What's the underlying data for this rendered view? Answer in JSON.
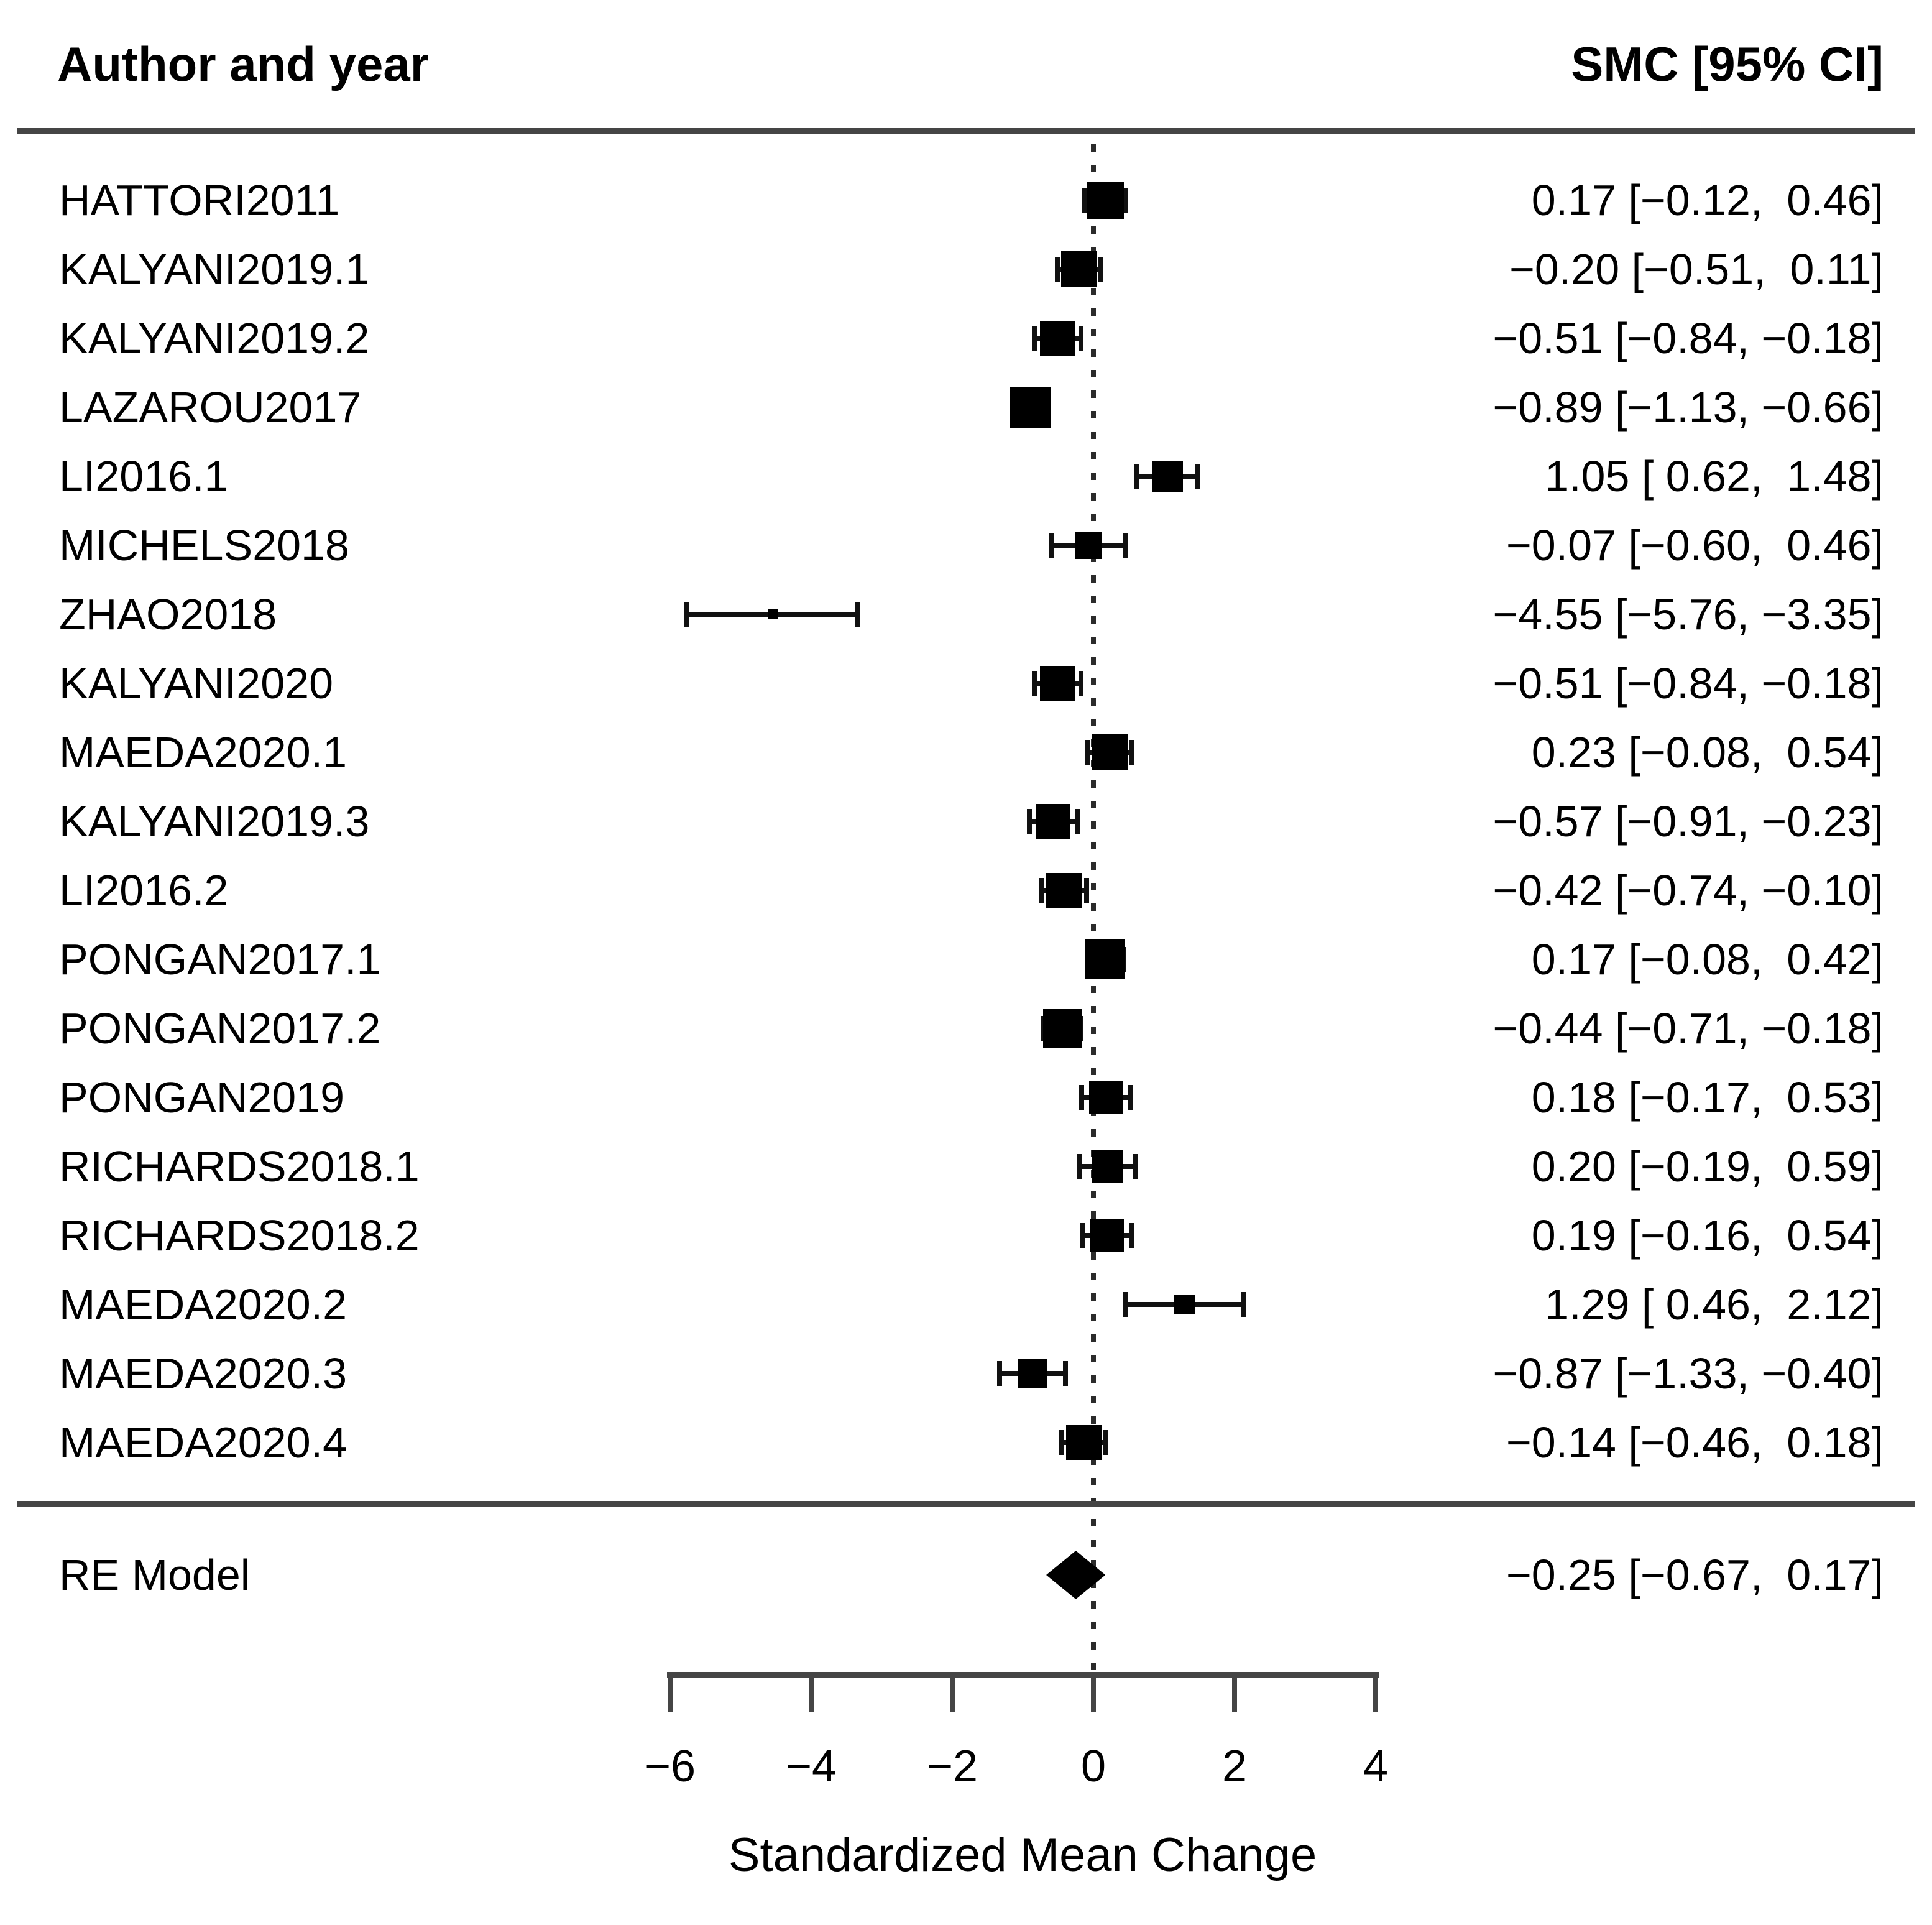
{
  "header": {
    "left": "Author and year",
    "right": "SMC [95% CI]"
  },
  "colors": {
    "text": "#000000",
    "rule_gray": "#454545",
    "marker_black": "#000000"
  },
  "chart_data": {
    "type": "forest",
    "title": "",
    "xlabel": "Standardized Mean Change",
    "xlim": [
      -6,
      4
    ],
    "x_ticks": [
      -6,
      -4,
      -2,
      0,
      2,
      4
    ],
    "zero_reference_line": 0,
    "effect_measure": "SMC",
    "ci_level": "95%",
    "studies": [
      {
        "label": "HATTORI2011",
        "est": 0.17,
        "lo": -0.12,
        "hi": 0.46
      },
      {
        "label": "KALYANI2019.1",
        "est": -0.2,
        "lo": -0.51,
        "hi": 0.11
      },
      {
        "label": "KALYANI2019.2",
        "est": -0.51,
        "lo": -0.84,
        "hi": -0.18
      },
      {
        "label": "LAZAROU2017",
        "est": -0.89,
        "lo": -1.13,
        "hi": -0.66
      },
      {
        "label": "LI2016.1",
        "est": 1.05,
        "lo": 0.62,
        "hi": 1.48
      },
      {
        "label": "MICHELS2018",
        "est": -0.07,
        "lo": -0.6,
        "hi": 0.46
      },
      {
        "label": "ZHAO2018",
        "est": -4.55,
        "lo": -5.76,
        "hi": -3.35
      },
      {
        "label": "KALYANI2020",
        "est": -0.51,
        "lo": -0.84,
        "hi": -0.18
      },
      {
        "label": "MAEDA2020.1",
        "est": 0.23,
        "lo": -0.08,
        "hi": 0.54
      },
      {
        "label": "KALYANI2019.3",
        "est": -0.57,
        "lo": -0.91,
        "hi": -0.23
      },
      {
        "label": "LI2016.2",
        "est": -0.42,
        "lo": -0.74,
        "hi": -0.1
      },
      {
        "label": "PONGAN2017.1",
        "est": 0.17,
        "lo": -0.08,
        "hi": 0.42
      },
      {
        "label": "PONGAN2017.2",
        "est": -0.44,
        "lo": -0.71,
        "hi": -0.18
      },
      {
        "label": "PONGAN2019",
        "est": 0.18,
        "lo": -0.17,
        "hi": 0.53
      },
      {
        "label": "RICHARDS2018.1",
        "est": 0.2,
        "lo": -0.19,
        "hi": 0.59
      },
      {
        "label": "RICHARDS2018.2",
        "est": 0.19,
        "lo": -0.16,
        "hi": 0.54
      },
      {
        "label": "MAEDA2020.2",
        "est": 1.29,
        "lo": 0.46,
        "hi": 2.12
      },
      {
        "label": "MAEDA2020.3",
        "est": -0.87,
        "lo": -1.33,
        "hi": -0.4
      },
      {
        "label": "MAEDA2020.4",
        "est": -0.14,
        "lo": -0.46,
        "hi": 0.18
      }
    ],
    "summary": {
      "label": "RE Model",
      "est": -0.25,
      "lo": -0.67,
      "hi": 0.17
    }
  }
}
